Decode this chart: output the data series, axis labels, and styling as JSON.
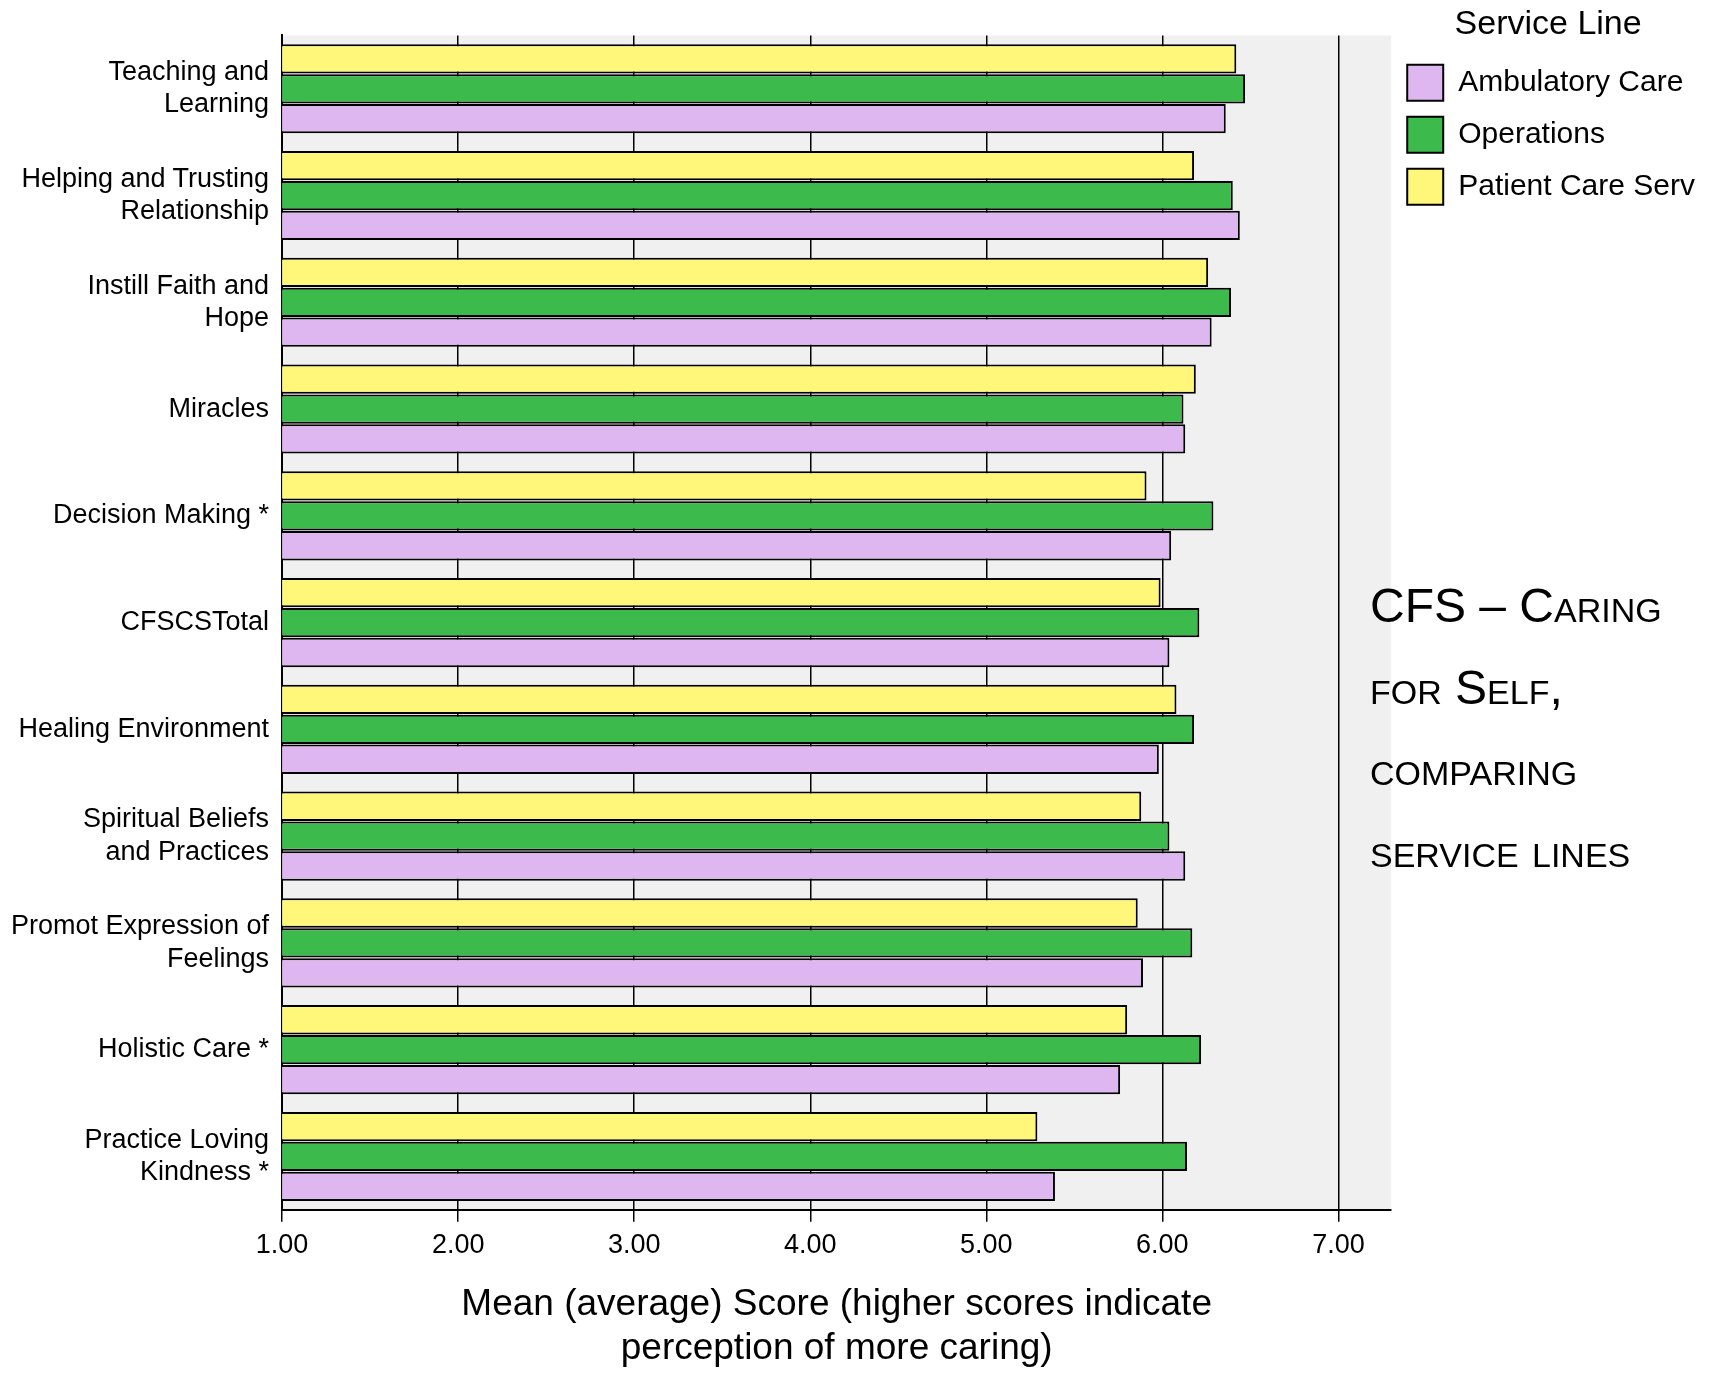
{
  "chart_data": {
    "type": "bar",
    "orientation": "horizontal",
    "xlabel": "Mean (average) Score (higher scores indicate perception of more caring)",
    "legend_title": "Service Line",
    "annotations": [
      "CFS – Caring for Self, comparing service lines"
    ],
    "categories": [
      "Teaching and Learning",
      "Helping and Trusting Relationship",
      "Instill Faith and Hope",
      "Miracles",
      "Decision Making *",
      "CFSCSTotal",
      "Healing Environment",
      "Spiritual Beliefs and Practices",
      "Promot Expression of Feelings",
      "Holistic Care *",
      "Practice Loving Kindness *"
    ],
    "series": [
      {
        "name": "Patient Care Serv",
        "color": "#fff77a",
        "values": [
          6.42,
          6.18,
          6.26,
          6.19,
          5.91,
          5.99,
          6.08,
          5.88,
          5.86,
          5.8,
          5.29
        ]
      },
      {
        "name": "Operations",
        "color": "#3cbb4c",
        "values": [
          6.47,
          6.4,
          6.39,
          6.12,
          6.29,
          6.21,
          6.18,
          6.04,
          6.17,
          6.22,
          6.14
        ]
      },
      {
        "name": "Ambulatory Care",
        "color": "#dfb7f0",
        "values": [
          6.36,
          6.44,
          6.28,
          6.13,
          6.05,
          6.04,
          5.98,
          6.13,
          5.89,
          5.76,
          5.39
        ]
      }
    ],
    "xlim": [
      1,
      7.3
    ],
    "xticks": [
      {
        "value": 1,
        "label": "1.00"
      },
      {
        "value": 2,
        "label": "2.00"
      },
      {
        "value": 3,
        "label": "3.00"
      },
      {
        "value": 4,
        "label": "4.00"
      },
      {
        "value": 5,
        "label": "5.00"
      },
      {
        "value": 6,
        "label": "6.00"
      },
      {
        "value": 7,
        "label": "7.00"
      }
    ],
    "grid": "x",
    "legend": "right"
  }
}
